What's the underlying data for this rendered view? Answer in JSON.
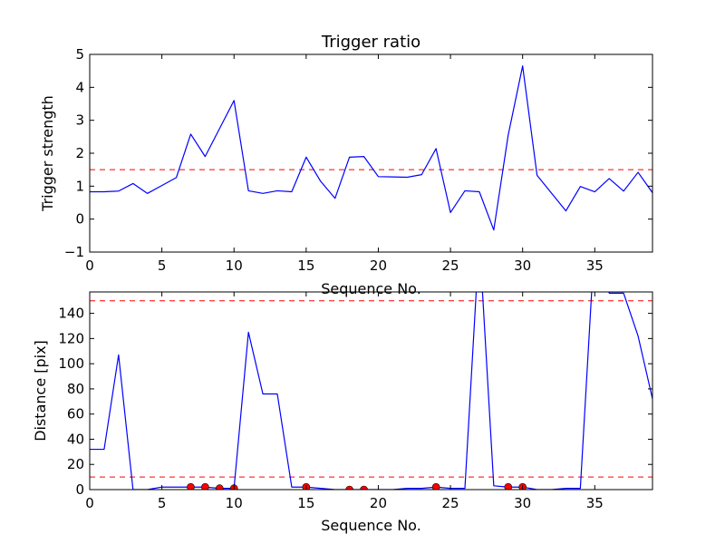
{
  "chart_data": [
    {
      "type": "line",
      "title": "Trigger ratio",
      "xlabel": "Sequence No.",
      "ylabel": "Trigger strength",
      "xlim": [
        0,
        39
      ],
      "ylim": [
        -1,
        5
      ],
      "xticks": [
        0,
        5,
        10,
        15,
        20,
        25,
        30,
        35
      ],
      "yticks": [
        -1,
        0,
        1,
        2,
        3,
        4,
        5
      ],
      "xtick_labels": [
        "0",
        "5",
        "10",
        "15",
        "20",
        "25",
        "30",
        "35"
      ],
      "ytick_labels": [
        "−1",
        "0",
        "1",
        "2",
        "3",
        "4",
        "5"
      ],
      "grid": false,
      "series": [
        {
          "color": "#0000ff",
          "x": [
            0,
            1,
            2,
            3,
            4,
            5,
            6,
            7,
            8,
            9,
            10,
            11,
            12,
            13,
            14,
            15,
            16,
            17,
            18,
            19,
            20,
            21,
            22,
            23,
            24,
            25,
            26,
            27,
            28,
            29,
            30,
            31,
            32,
            33,
            34,
            35,
            36,
            37,
            38,
            39
          ],
          "y": [
            0.83,
            0.83,
            0.85,
            1.08,
            0.78,
            1.02,
            1.26,
            2.58,
            1.9,
            2.75,
            3.6,
            0.86,
            0.78,
            0.86,
            0.83,
            1.88,
            1.15,
            0.63,
            1.88,
            1.9,
            1.29,
            1.28,
            1.27,
            1.35,
            2.14,
            0.2,
            0.86,
            0.83,
            -0.33,
            2.55,
            4.65,
            1.33,
            0.79,
            0.25,
            0.99,
            0.83,
            1.23,
            0.85,
            1.42,
            0.8
          ]
        }
      ],
      "hlines": [
        {
          "y": 1.5,
          "color": "#ff0000",
          "style": "dashed"
        }
      ]
    },
    {
      "type": "line",
      "xlabel": "Sequence No.",
      "ylabel": "Distance [pix]",
      "xlim": [
        0,
        39
      ],
      "ylim": [
        0,
        157
      ],
      "xticks": [
        0,
        5,
        10,
        15,
        20,
        25,
        30,
        35
      ],
      "yticks": [
        0,
        20,
        40,
        60,
        80,
        100,
        120,
        140
      ],
      "xtick_labels": [
        "0",
        "5",
        "10",
        "15",
        "20",
        "25",
        "30",
        "35"
      ],
      "ytick_labels": [
        "0",
        "20",
        "40",
        "60",
        "80",
        "100",
        "120",
        "140"
      ],
      "grid": false,
      "series": [
        {
          "color": "#0000ff",
          "x": [
            0,
            1,
            2,
            3,
            4,
            5,
            6,
            7,
            8,
            9,
            10,
            11,
            12,
            13,
            14,
            15,
            16,
            17,
            18,
            19,
            20,
            21,
            22,
            23,
            24,
            25,
            26,
            27,
            28,
            29,
            30,
            31,
            32,
            33,
            34,
            35,
            36,
            37,
            38,
            39
          ],
          "y": [
            32,
            32,
            107,
            0,
            0,
            2,
            2,
            2,
            2,
            1,
            1,
            125,
            76,
            76,
            2,
            2,
            1,
            0,
            0,
            0,
            0,
            0,
            1,
            1,
            2,
            1,
            1,
            200,
            3,
            2,
            2,
            0,
            0,
            1,
            1,
            200,
            156,
            156,
            122,
            72
          ]
        }
      ],
      "markers": {
        "color": "#ff0000",
        "x": [
          7,
          8,
          9,
          10,
          15,
          18,
          19,
          24,
          29,
          30
        ],
        "y": [
          2,
          2,
          1,
          1,
          2,
          0,
          0,
          2,
          2,
          2
        ]
      },
      "hlines": [
        {
          "y": 150,
          "color": "#ff0000",
          "style": "dashed"
        },
        {
          "y": 10,
          "color": "#ff0000",
          "style": "dashed"
        }
      ]
    }
  ]
}
